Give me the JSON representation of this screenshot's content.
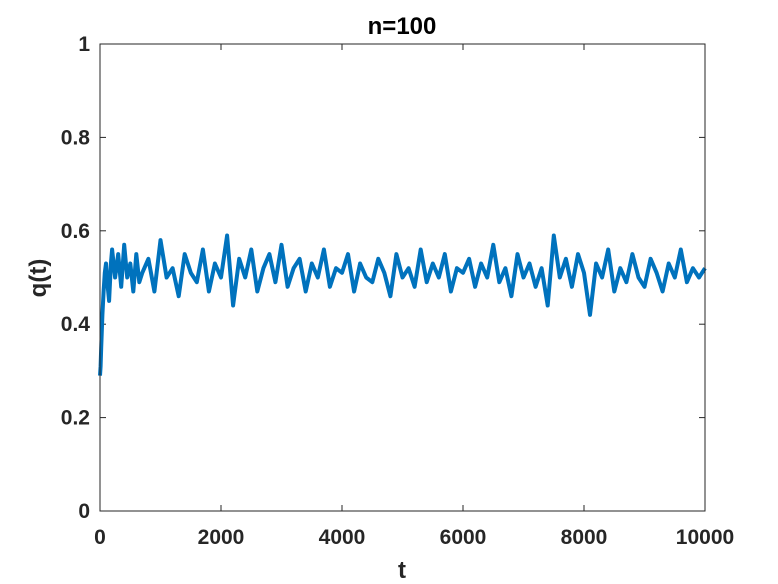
{
  "chart_data": {
    "type": "line",
    "title": "n=100",
    "xlabel": "t",
    "ylabel": "q(t)",
    "xlim": [
      0,
      10000
    ],
    "ylim": [
      0,
      1
    ],
    "xticks": [
      0,
      2000,
      4000,
      6000,
      8000,
      10000
    ],
    "yticks": [
      0,
      0.2,
      0.4,
      0.6,
      0.8,
      1
    ],
    "xtick_labels": [
      "0",
      "2000",
      "4000",
      "6000",
      "8000",
      "10000"
    ],
    "ytick_labels": [
      "0",
      "0.2",
      "0.4",
      "0.6",
      "0.8",
      "1"
    ],
    "grid": false,
    "line_color": "#0072BD",
    "series": [
      {
        "x": [
          0,
          10,
          20,
          40,
          60,
          80,
          100,
          120,
          150,
          180,
          200,
          250,
          300,
          350,
          400,
          450,
          500,
          550,
          600,
          650,
          700,
          800,
          900,
          1000,
          1100,
          1200,
          1300,
          1400,
          1500,
          1600,
          1700,
          1800,
          1900,
          2000,
          2100,
          2200,
          2300,
          2400,
          2500,
          2600,
          2700,
          2800,
          2900,
          3000,
          3100,
          3200,
          3300,
          3400,
          3500,
          3600,
          3700,
          3800,
          3900,
          4000,
          4100,
          4200,
          4300,
          4400,
          4500,
          4600,
          4700,
          4800,
          4900,
          5000,
          5100,
          5200,
          5300,
          5400,
          5500,
          5600,
          5700,
          5800,
          5900,
          6000,
          6100,
          6200,
          6300,
          6400,
          6500,
          6600,
          6700,
          6800,
          6900,
          7000,
          7100,
          7200,
          7300,
          7400,
          7500,
          7600,
          7700,
          7800,
          7900,
          8000,
          8100,
          8200,
          8300,
          8400,
          8500,
          8600,
          8700,
          8800,
          8900,
          9000,
          9100,
          9200,
          9300,
          9400,
          9500,
          9600,
          9700,
          9800,
          9900,
          10000
        ],
        "y": [
          0.29,
          0.31,
          0.35,
          0.42,
          0.47,
          0.51,
          0.53,
          0.49,
          0.45,
          0.53,
          0.56,
          0.5,
          0.55,
          0.48,
          0.57,
          0.5,
          0.53,
          0.47,
          0.55,
          0.49,
          0.51,
          0.54,
          0.47,
          0.58,
          0.5,
          0.52,
          0.46,
          0.55,
          0.51,
          0.49,
          0.56,
          0.47,
          0.53,
          0.5,
          0.59,
          0.44,
          0.54,
          0.5,
          0.56,
          0.47,
          0.52,
          0.55,
          0.49,
          0.57,
          0.48,
          0.52,
          0.54,
          0.47,
          0.53,
          0.5,
          0.56,
          0.48,
          0.52,
          0.51,
          0.55,
          0.47,
          0.53,
          0.5,
          0.49,
          0.54,
          0.51,
          0.46,
          0.55,
          0.5,
          0.52,
          0.48,
          0.56,
          0.49,
          0.53,
          0.5,
          0.55,
          0.47,
          0.52,
          0.51,
          0.54,
          0.48,
          0.53,
          0.5,
          0.57,
          0.49,
          0.52,
          0.46,
          0.55,
          0.5,
          0.53,
          0.48,
          0.52,
          0.44,
          0.59,
          0.5,
          0.54,
          0.48,
          0.55,
          0.51,
          0.42,
          0.53,
          0.5,
          0.56,
          0.47,
          0.52,
          0.49,
          0.55,
          0.5,
          0.48,
          0.54,
          0.51,
          0.47,
          0.53,
          0.5,
          0.56,
          0.49,
          0.52,
          0.5,
          0.52
        ]
      }
    ]
  }
}
